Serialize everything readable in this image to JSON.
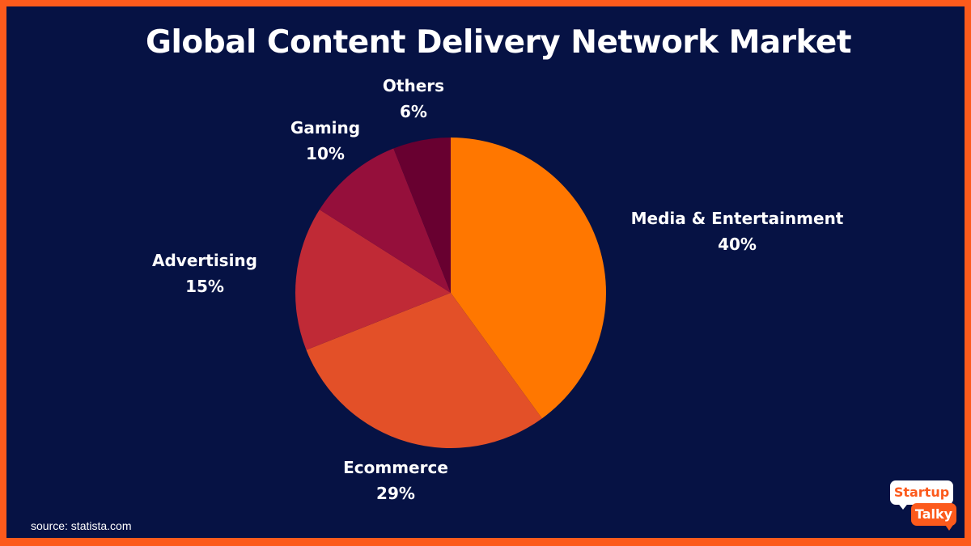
{
  "chart_data": {
    "type": "pie",
    "title": "Global Content Delivery Network Market",
    "slices": [
      {
        "label": "Media & Entertainment",
        "value": 40,
        "display": "40%",
        "color": "#ff7700"
      },
      {
        "label": "Ecommerce",
        "value": 29,
        "display": "29%",
        "color": "#e35028"
      },
      {
        "label": "Advertising",
        "value": 15,
        "display": "15%",
        "color": "#c02a36"
      },
      {
        "label": "Gaming",
        "value": 10,
        "display": "10%",
        "color": "#950f3b"
      },
      {
        "label": "Others",
        "value": 6,
        "display": "6%",
        "color": "#680030"
      }
    ],
    "start": "12 o'clock",
    "direction": "clockwise"
  },
  "source": "source: statista.com",
  "logo": {
    "line1": "Startup",
    "line2": "Talky"
  },
  "colors": {
    "border": "#fc5a1c",
    "background": "#061244",
    "text": "#ffffff"
  }
}
